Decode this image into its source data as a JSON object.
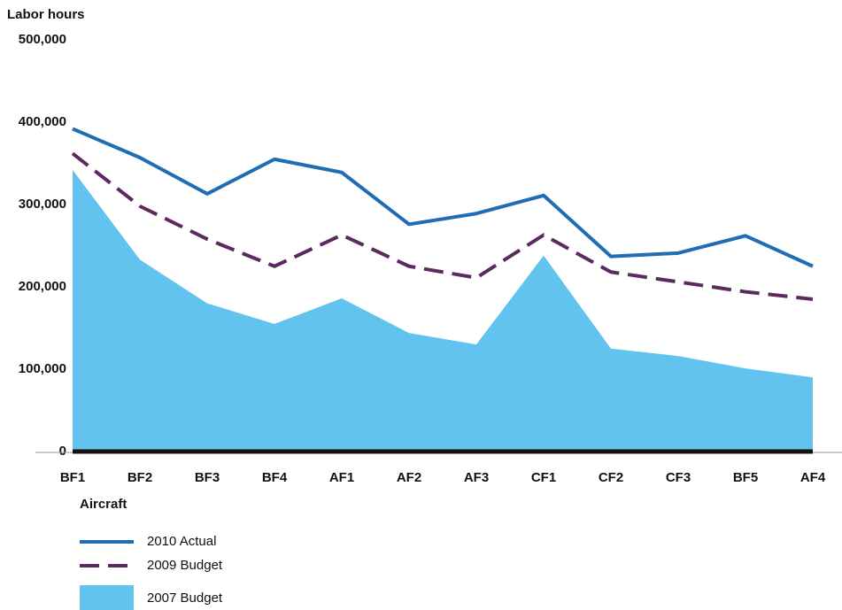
{
  "chart_data": {
    "type": "line",
    "y_label": "Labor hours",
    "x_label": "Aircraft",
    "categories": [
      "BF1",
      "BF2",
      "BF3",
      "BF4",
      "AF1",
      "AF2",
      "AF3",
      "CF1",
      "CF2",
      "CF3",
      "BF5",
      "AF4"
    ],
    "series": [
      {
        "name": "2010 Actual",
        "color": "#1f6db3",
        "style": "solid",
        "values": [
          392000,
          357000,
          313000,
          355000,
          339000,
          276000,
          289000,
          311000,
          237000,
          241000,
          262000,
          225000
        ]
      },
      {
        "name": "2009 Budget",
        "color": "#5b2a5e",
        "style": "dashed",
        "values": [
          362000,
          298000,
          258000,
          225000,
          263000,
          225000,
          211000,
          263000,
          218000,
          206000,
          194000,
          185000
        ]
      },
      {
        "name": "2007 Budget",
        "color": "#62c4ee",
        "style": "area",
        "values": [
          342000,
          233000,
          180000,
          155000,
          186000,
          144000,
          130000,
          238000,
          125000,
          116000,
          101000,
          90000
        ]
      }
    ],
    "ylim": [
      0,
      500000
    ],
    "yticks": [
      0,
      {
        "value": 100000,
        "label": "100,000"
      },
      {
        "value": 200000,
        "label": "200,000"
      },
      {
        "value": 300000,
        "label": "300,000"
      },
      {
        "value": 400000,
        "label": "400,000"
      },
      {
        "value": 500000,
        "label": "500,000"
      }
    ]
  }
}
